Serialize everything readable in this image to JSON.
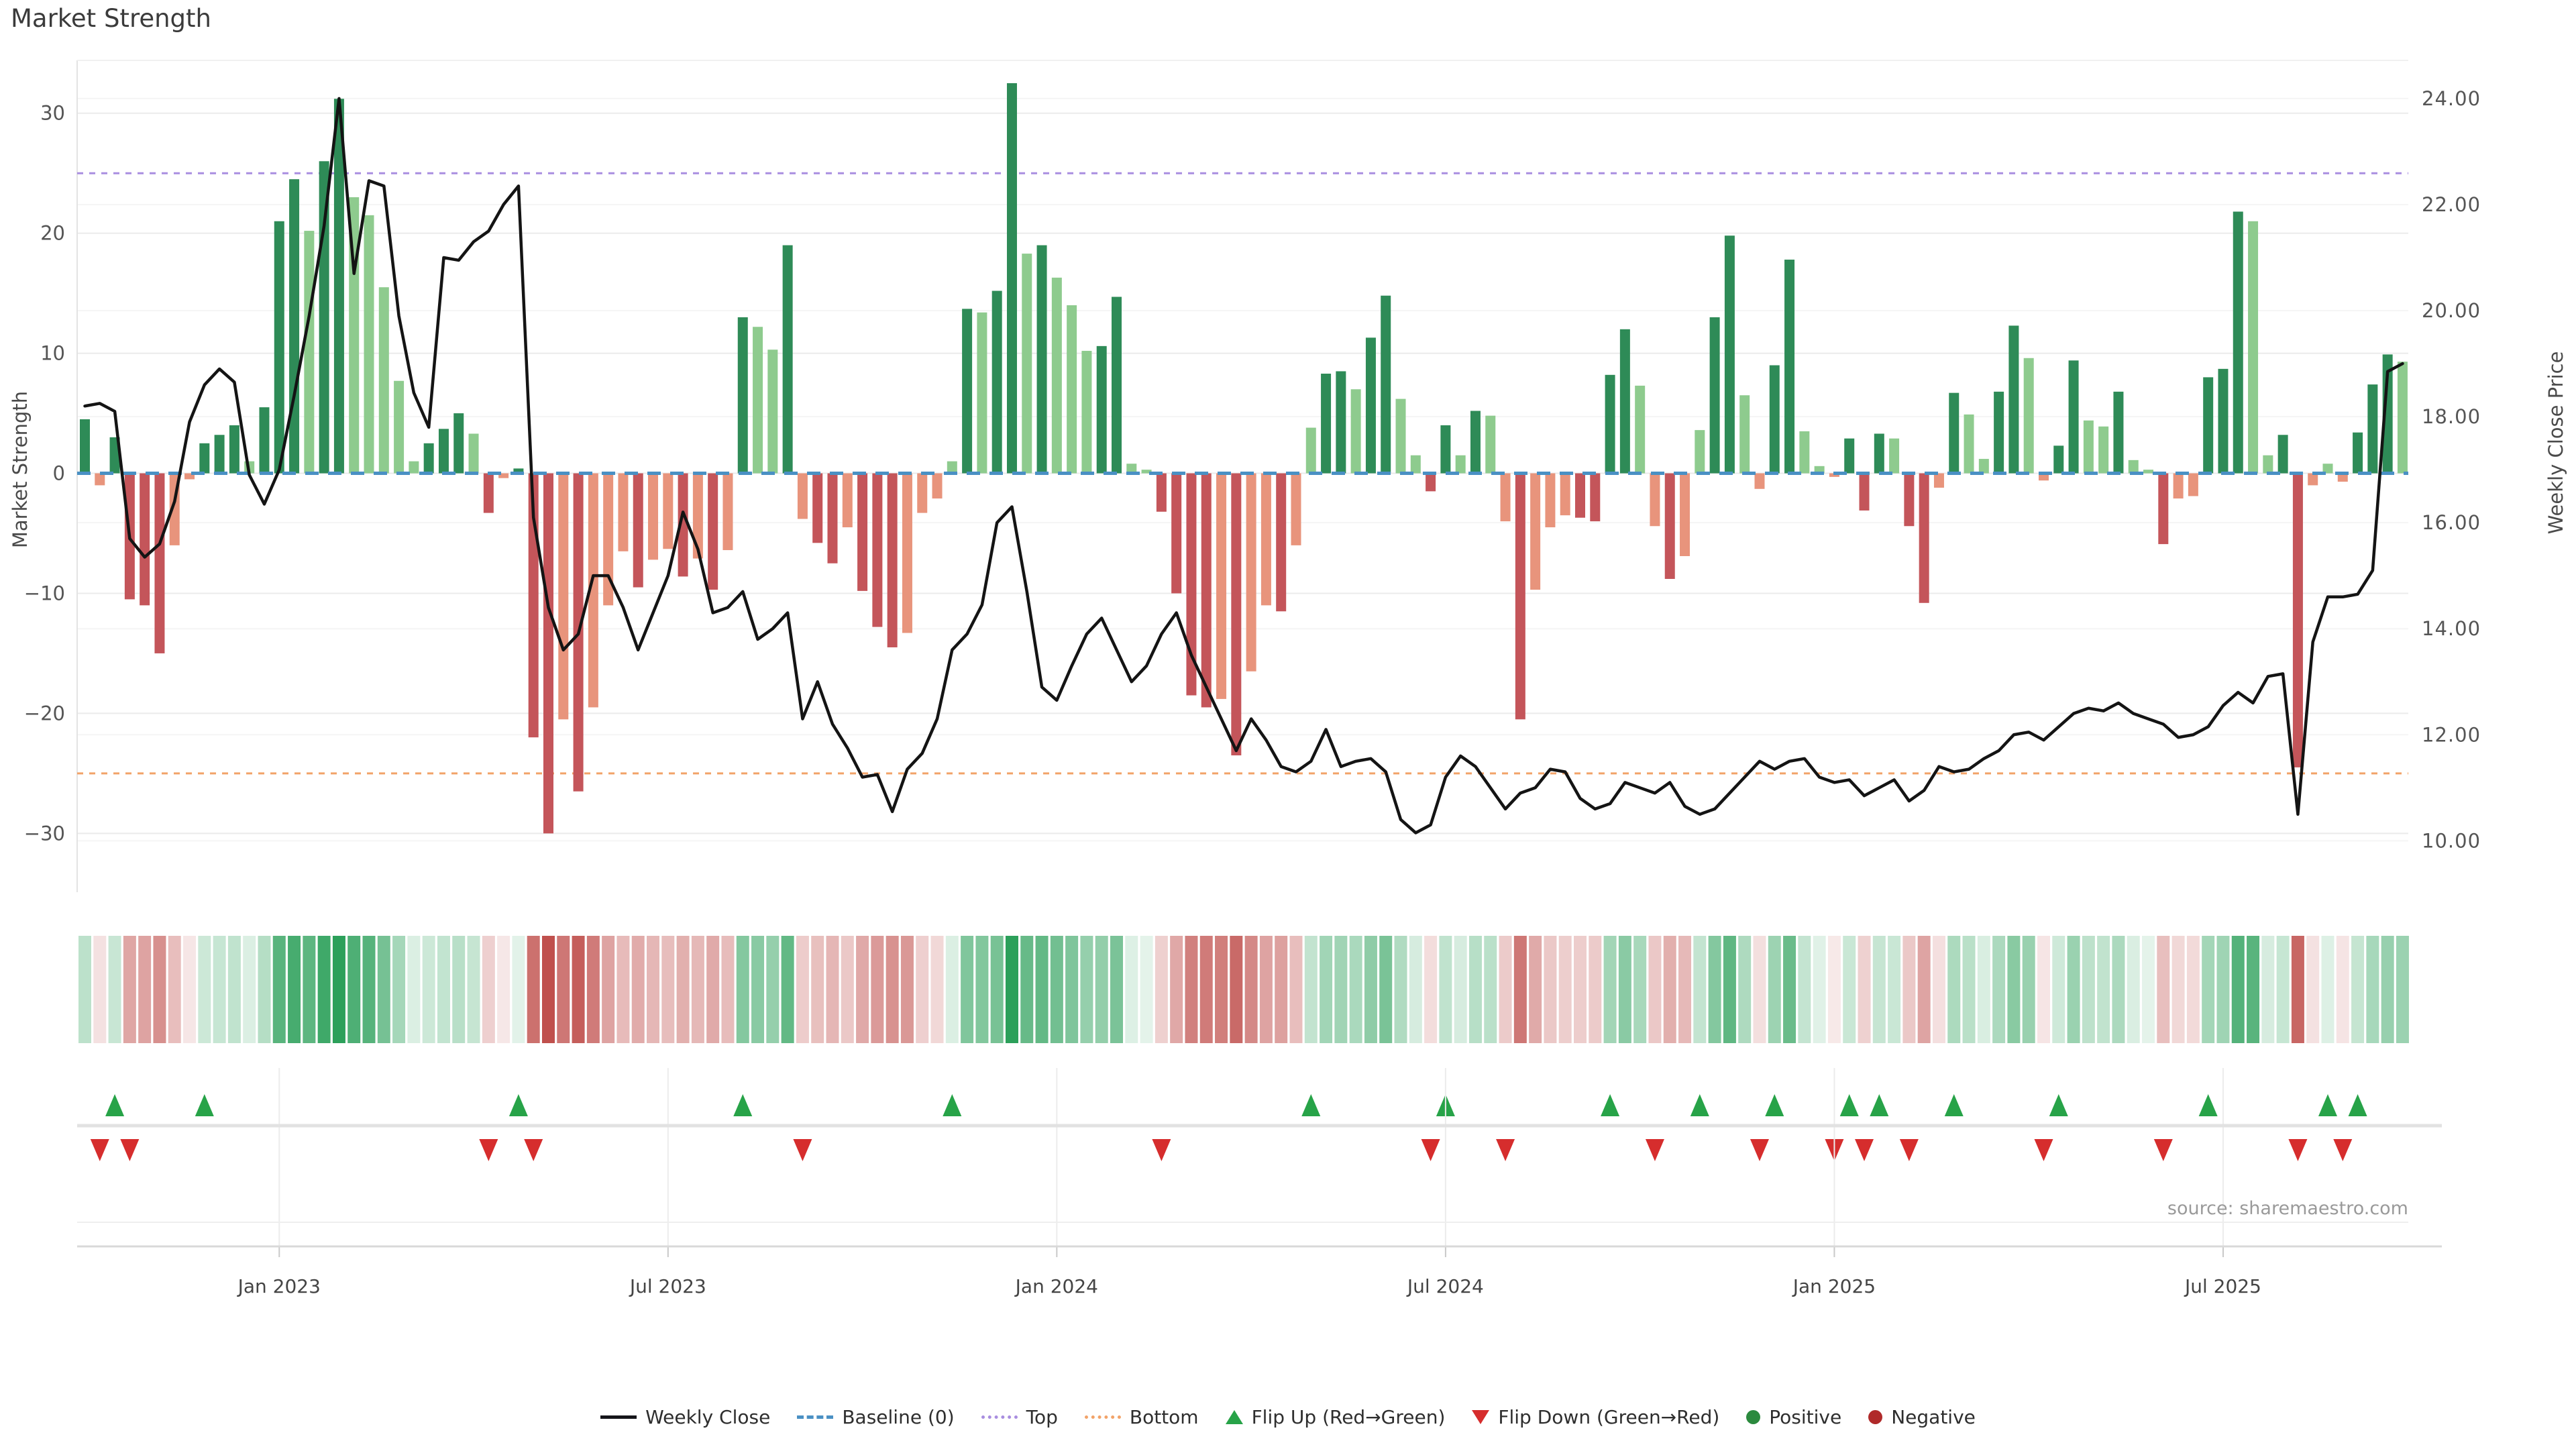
{
  "title": "Market Strength",
  "source": "source: sharemaestro.com",
  "axes": {
    "left": {
      "title": "Market Strength",
      "ticks": [
        30,
        20,
        10,
        0,
        -10,
        -20,
        -30
      ]
    },
    "right": {
      "title": "Weekly Close Price",
      "ticks": [
        {
          "label": "24.00",
          "value": 24
        },
        {
          "label": "22.00",
          "value": 22
        },
        {
          "label": "20.00",
          "value": 20
        },
        {
          "label": "18.00",
          "value": 18
        },
        {
          "label": "16.00",
          "value": 16
        },
        {
          "label": "14.00",
          "value": 14
        },
        {
          "label": "12.00",
          "value": 12
        },
        {
          "label": "10.00",
          "value": 10
        }
      ]
    },
    "x": {
      "ticks": [
        {
          "label": "Jan 2023",
          "week": 13
        },
        {
          "label": "Jul 2023",
          "week": 39
        },
        {
          "label": "Jan 2024",
          "week": 65
        },
        {
          "label": "Jul 2024",
          "week": 91
        },
        {
          "label": "Jan 2025",
          "week": 117
        },
        {
          "label": "Jul 2025",
          "week": 143
        }
      ]
    }
  },
  "reference_lines": {
    "baseline": {
      "label": "Baseline (0)",
      "value": 0,
      "color": "#4a90c4"
    },
    "top": {
      "label": "Top",
      "value": 25,
      "color": "#a98ee0"
    },
    "bottom": {
      "label": "Bottom",
      "value": -25,
      "color": "#f2a369"
    }
  },
  "colors": {
    "bar_positive_dark": "#2e8b57",
    "bar_positive_light": "#8ecb8e",
    "bar_negative_dark": "#c4555a",
    "bar_negative_light": "#e8947c",
    "price_line": "#141414",
    "flip_up": "#27a348",
    "flip_down": "#d62d2d",
    "positive_dot": "#2b8a3e",
    "negative_dot": "#b02a2a",
    "heat_positive": "#2ca05a",
    "heat_negative": "#c0504d"
  },
  "legend": {
    "items": [
      {
        "label": "Weekly Close",
        "icon": "weekly-close-line"
      },
      {
        "label": "Baseline (0)",
        "icon": "baseline-dash"
      },
      {
        "label": "Top",
        "icon": "top-dotted"
      },
      {
        "label": "Bottom",
        "icon": "bottom-dotted"
      },
      {
        "label": "Flip Up (Red→Green)",
        "icon": "flip-up-triangle"
      },
      {
        "label": "Flip Down (Green→Red)",
        "icon": "flip-down-triangle"
      },
      {
        "label": "Positive",
        "icon": "positive-dot"
      },
      {
        "label": "Negative",
        "icon": "negative-dot"
      }
    ]
  },
  "chart_data": {
    "type": "bar",
    "subtype": "weekly bar + line combo with heatmap strip and flip markers",
    "title": "Market Strength",
    "x_start_date": "2022-10-03",
    "x_step": "1 week",
    "xlabel": "",
    "ylabel_left": "Market Strength",
    "ylabel_right": "Weekly Close Price",
    "ylim_left": [
      -34.9,
      34.4
    ],
    "ylim_right": [
      9.03,
      24.72
    ],
    "grid": true,
    "legend_position": "bottom",
    "series": [
      {
        "name": "Market Strength",
        "type": "bar",
        "axis": "left",
        "values": [
          4.5,
          -1,
          3,
          -10.5,
          -11,
          -15,
          -6,
          -0.5,
          2.5,
          3.2,
          4,
          1,
          5.5,
          21,
          24.5,
          20.2,
          26,
          31.2,
          23,
          21.5,
          15.5,
          7.7,
          1,
          2.5,
          3.7,
          5,
          3.3,
          -3.3,
          -0.4,
          0.4,
          -22,
          -30,
          -20.5,
          -26.5,
          -19.5,
          -11,
          -6.5,
          -9.5,
          -7.2,
          -6.3,
          -8.6,
          -7.1,
          -9.7,
          -6.4,
          13,
          12.2,
          10.3,
          19,
          -3.8,
          -5.8,
          -7.5,
          -4.5,
          -9.8,
          -12.8,
          -14.5,
          -13.3,
          -3.3,
          -2.1,
          1,
          13.7,
          13.4,
          15.2,
          32.5,
          18.3,
          19,
          16.3,
          14,
          10.2,
          10.6,
          14.7,
          0.8,
          0.3,
          -3.2,
          -10,
          -18.5,
          -19.5,
          -18.8,
          -23.5,
          -16.5,
          -11,
          -11.5,
          -6,
          3.8,
          8.3,
          8.5,
          7,
          11.3,
          14.8,
          6.2,
          1.5,
          -1.5,
          4,
          1.5,
          5.2,
          4.8,
          -4,
          -20.5,
          -9.7,
          -4.5,
          -3.5,
          -3.7,
          -4,
          8.2,
          12,
          7.3,
          -4.4,
          -8.8,
          -6.9,
          3.6,
          13,
          19.8,
          6.5,
          -1.3,
          9,
          17.8,
          3.5,
          0.6,
          -0.3,
          2.9,
          -3.1,
          3.3,
          2.9,
          -4.4,
          -10.8,
          -1.2,
          6.7,
          4.9,
          1.2,
          6.8,
          12.3,
          9.6,
          -0.6,
          2.3,
          9.4,
          4.4,
          3.9,
          6.8,
          1.1,
          0.3,
          -5.9,
          -2.1,
          -1.9,
          8,
          8.7,
          21.8,
          21,
          1.5,
          3.2,
          -24.5,
          -1,
          0.8,
          -0.7,
          3.4,
          7.4,
          9.9,
          9.3
        ]
      },
      {
        "name": "Weekly Close",
        "type": "line",
        "axis": "right",
        "values": [
          18.2,
          18.25,
          18.1,
          15.7,
          15.35,
          15.6,
          16.4,
          17.9,
          18.6,
          18.9,
          18.65,
          16.9,
          16.35,
          17.0,
          18.4,
          19.9,
          21.6,
          24.0,
          20.7,
          22.45,
          22.35,
          19.9,
          18.45,
          17.8,
          21.0,
          20.95,
          21.3,
          21.5,
          22.0,
          22.35,
          16.1,
          14.4,
          13.6,
          13.9,
          15.0,
          15.0,
          14.4,
          13.6,
          14.3,
          15.0,
          16.2,
          15.5,
          14.3,
          14.4,
          14.7,
          13.8,
          14.0,
          14.3,
          12.3,
          13.0,
          12.2,
          11.75,
          11.2,
          11.25,
          10.55,
          11.35,
          11.65,
          12.3,
          13.6,
          13.9,
          14.45,
          16.0,
          16.3,
          14.7,
          12.9,
          12.65,
          13.3,
          13.9,
          14.2,
          13.6,
          13.0,
          13.3,
          13.9,
          14.3,
          13.5,
          12.9,
          12.3,
          11.7,
          12.3,
          11.9,
          11.4,
          11.3,
          11.5,
          12.1,
          11.4,
          11.5,
          11.55,
          11.3,
          10.4,
          10.15,
          10.3,
          11.2,
          11.6,
          11.4,
          11.0,
          10.6,
          10.9,
          11.0,
          11.35,
          11.3,
          10.8,
          10.6,
          10.7,
          11.1,
          11.0,
          10.9,
          11.1,
          10.65,
          10.5,
          10.6,
          10.9,
          11.2,
          11.5,
          11.35,
          11.5,
          11.55,
          11.2,
          11.1,
          11.15,
          10.85,
          11.0,
          11.15,
          10.75,
          10.95,
          11.4,
          11.3,
          11.35,
          11.55,
          11.7,
          12.0,
          12.05,
          11.9,
          12.15,
          12.4,
          12.5,
          12.45,
          12.6,
          12.4,
          12.3,
          12.2,
          11.95,
          12.0,
          12.15,
          12.55,
          12.8,
          12.6,
          13.1,
          13.15,
          10.5,
          13.75,
          14.6,
          14.6,
          14.65,
          15.1,
          18.85,
          19.0
        ]
      }
    ],
    "annotations": {
      "flip_up_rule": "green up-triangle on week where bar turns negative to positive",
      "flip_down_rule": "red down-triangle on week where bar turns positive to negative",
      "heatmap_rule": "strip color intensity proportional to |Market Strength| (green positive, red negative)"
    }
  }
}
